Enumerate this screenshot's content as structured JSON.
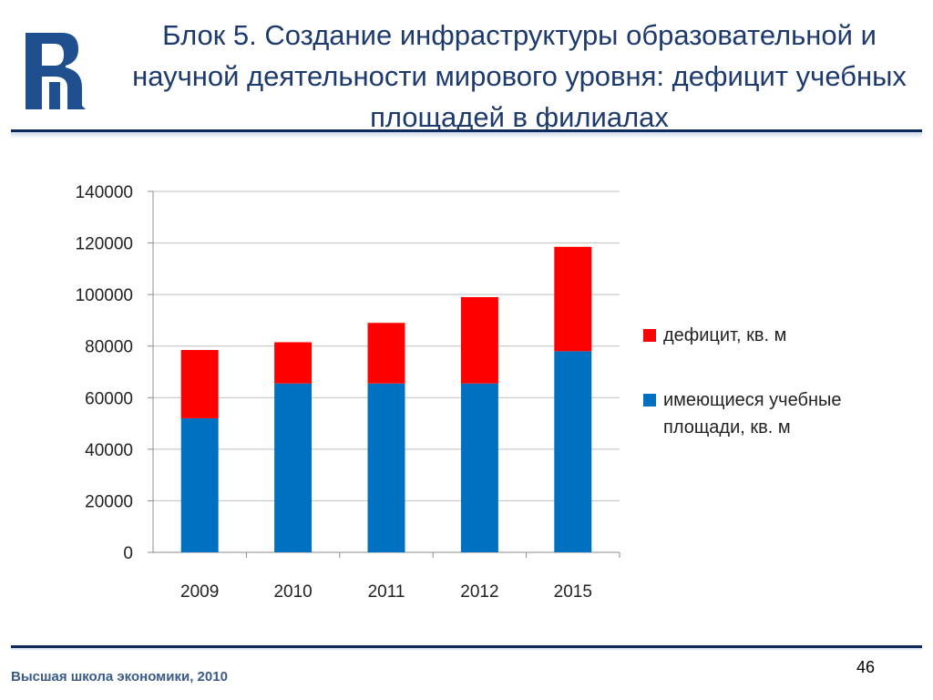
{
  "header": {
    "title": "Блок 5. Создание инфраструктуры образовательной и научной деятельности мирового уровня: дефицит учебных площадей в филиалах"
  },
  "footer": {
    "org_text": "Высшая школа экономики, 2010",
    "page_number": "46"
  },
  "colors": {
    "title": "#1d3a6e",
    "available": "#0070C0",
    "deficit": "#FF0000",
    "grid": "#bfbfbf"
  },
  "chart_data": {
    "type": "bar",
    "stacked": true,
    "title": "",
    "xlabel": "",
    "ylabel": "",
    "categories": [
      "2009",
      "2010",
      "2011",
      "2012",
      "2015"
    ],
    "series": [
      {
        "name": "имеющиеся учебные площади, кв. м",
        "color": "#0070C0",
        "values": [
          52000,
          65500,
          65500,
          65500,
          78000
        ]
      },
      {
        "name": "дефицит, кв. м",
        "color": "#FF0000",
        "values": [
          26500,
          16000,
          23500,
          33500,
          40500
        ]
      }
    ],
    "ylim": [
      0,
      140000
    ],
    "yticks": [
      0,
      20000,
      40000,
      60000,
      80000,
      100000,
      120000,
      140000
    ],
    "grid": true,
    "legend_position": "right",
    "legend_order": [
      "дефицит, кв. м",
      "имеющиеся учебные площади, кв. м"
    ]
  }
}
